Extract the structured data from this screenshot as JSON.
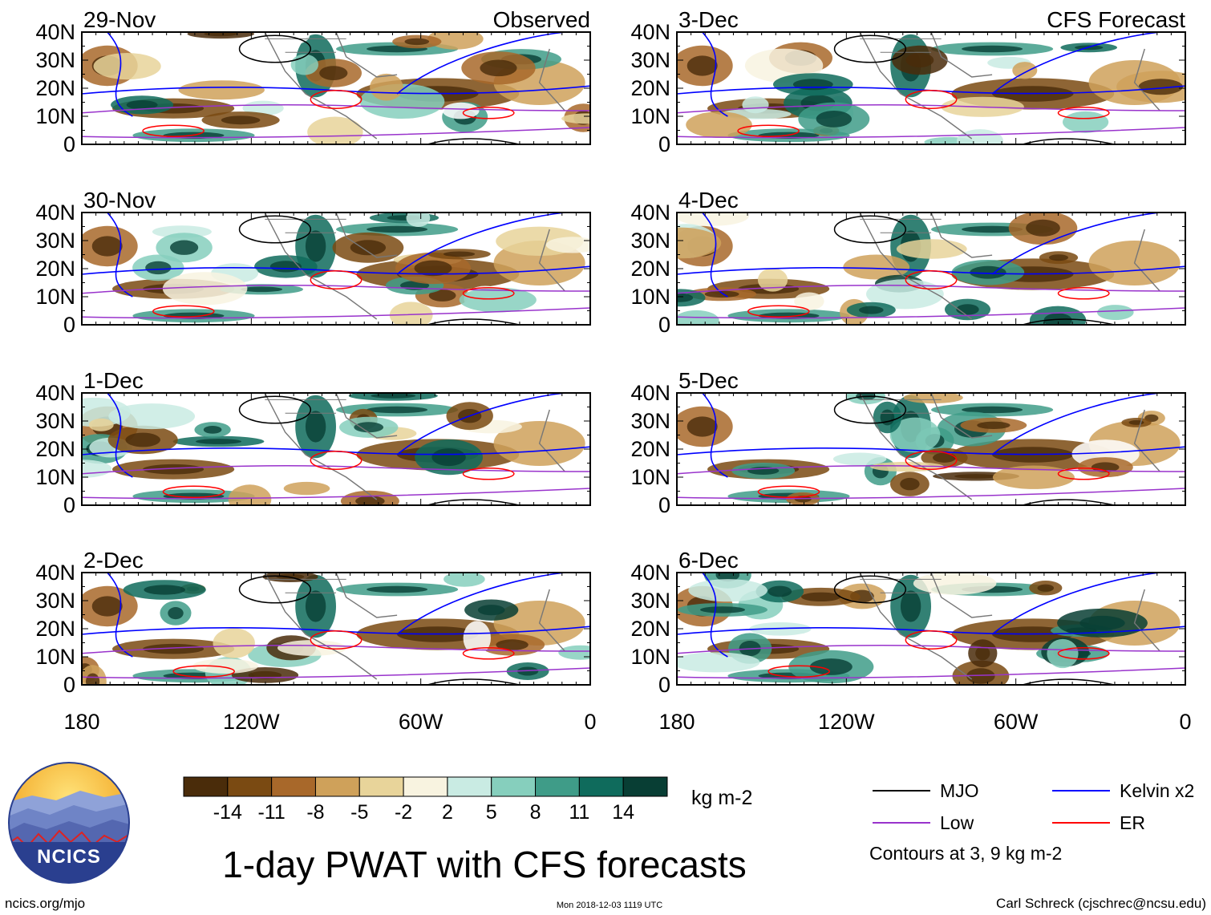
{
  "chart_data": {
    "type": "heatmap",
    "title": "1-day PWAT with CFS forecasts",
    "units": "kg m-2",
    "xlim": [
      -180,
      0
    ],
    "ylim": [
      0,
      40
    ],
    "x_ticks": [
      "180",
      "120W",
      "60W",
      "0"
    ],
    "y_ticks": [
      "0",
      "10N",
      "20N",
      "30N",
      "40N"
    ],
    "columns": [
      {
        "label": "Observed",
        "panels": [
          "29-Nov",
          "30-Nov",
          "1-Dec",
          "2-Dec"
        ]
      },
      {
        "label": "CFS Forecast",
        "panels": [
          "3-Dec",
          "4-Dec",
          "5-Dec",
          "6-Dec"
        ]
      }
    ],
    "colorbar": {
      "ticks": [
        "-14",
        "-11",
        "-8",
        "-5",
        "-2",
        "2",
        "5",
        "8",
        "11",
        "14"
      ],
      "colors": [
        "#4a2c0a",
        "#7a4a12",
        "#a8682a",
        "#cfa15a",
        "#e8d49a",
        "#f8f3e0",
        "#ffffff",
        "#c9ebe3",
        "#86cfbd",
        "#3f9c88",
        "#0f6b5c",
        "#083e34"
      ]
    },
    "legend": [
      {
        "name": "MJO",
        "color": "#000000"
      },
      {
        "name": "Kelvin x2",
        "color": "#0000ff"
      },
      {
        "name": "Low",
        "color": "#9933cc"
      },
      {
        "name": "ER",
        "color": "#ff0000"
      }
    ],
    "contour_note": "Contours at 3, 9 kg m-2"
  },
  "footer": {
    "logo_text": "NCICS",
    "site": "ncics.org/mjo",
    "timestamp": "Mon 2018-12-03 1119 UTC",
    "author": "Carl Schreck (cjschrec@ncsu.edu)"
  }
}
